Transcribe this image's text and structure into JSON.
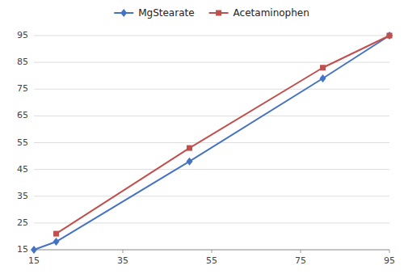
{
  "chart_data": {
    "type": "line",
    "series": [
      {
        "name": "MgStearate",
        "color": "#4472C4",
        "marker": "diamond",
        "line_style": "solid",
        "x": [
          15,
          20,
          50,
          80,
          95
        ],
        "values": [
          15,
          18,
          48,
          79,
          95
        ]
      },
      {
        "name": "Acetaminophen",
        "color": "#C0504D",
        "marker": "square",
        "line_style": "solid",
        "x": [
          20,
          50,
          80,
          95
        ],
        "values": [
          21,
          53,
          83,
          95
        ]
      }
    ],
    "xlim": [
      15,
      95
    ],
    "ylim": [
      15,
      95
    ],
    "xticks": [
      15,
      35,
      55,
      75,
      95
    ],
    "yticks": [
      15,
      25,
      35,
      45,
      55,
      65,
      75,
      85,
      95
    ],
    "grid": "y",
    "legend": "top"
  }
}
